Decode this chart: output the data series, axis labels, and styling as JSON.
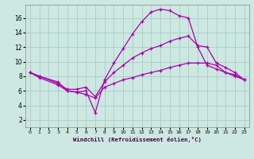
{
  "xlabel": "Windchill (Refroidissement éolien,°C)",
  "background_color": "#cce8e0",
  "line_color": "#aa00aa",
  "grid_color": "#aacccc",
  "xlim": [
    -0.5,
    23.5
  ],
  "ylim": [
    1.0,
    17.8
  ],
  "xticks": [
    0,
    1,
    2,
    3,
    4,
    5,
    6,
    7,
    8,
    9,
    10,
    11,
    12,
    13,
    14,
    15,
    16,
    17,
    18,
    19,
    20,
    21,
    22,
    23
  ],
  "yticks": [
    2,
    4,
    6,
    8,
    10,
    12,
    14,
    16
  ],
  "lines": [
    {
      "x": [
        0,
        1,
        3,
        4,
        5,
        6,
        7,
        8,
        9,
        10,
        11,
        12,
        13,
        14,
        15,
        16,
        17,
        18,
        19,
        20,
        21,
        22,
        23
      ],
      "y": [
        8.5,
        8.0,
        7.2,
        6.0,
        5.8,
        6.0,
        3.0,
        7.5,
        9.8,
        11.8,
        13.8,
        15.5,
        16.8,
        17.2,
        17.0,
        16.3,
        16.0,
        12.0,
        9.5,
        9.0,
        8.5,
        8.0,
        7.5
      ]
    },
    {
      "x": [
        0,
        1,
        3,
        4,
        5,
        6,
        7,
        8,
        9,
        10,
        11,
        12,
        13,
        14,
        15,
        16,
        17,
        18,
        19,
        20,
        21,
        22,
        23
      ],
      "y": [
        8.5,
        8.0,
        7.0,
        6.2,
        6.2,
        6.5,
        5.2,
        7.2,
        8.5,
        9.5,
        10.5,
        11.2,
        11.8,
        12.2,
        12.8,
        13.2,
        13.5,
        12.2,
        12.0,
        9.8,
        9.2,
        8.5,
        7.5
      ]
    },
    {
      "x": [
        0,
        1,
        3,
        4,
        5,
        6,
        7,
        8,
        9,
        10,
        11,
        12,
        13,
        14,
        15,
        16,
        17,
        18,
        19,
        20,
        21,
        22,
        23
      ],
      "y": [
        8.5,
        7.8,
        6.8,
        6.0,
        5.8,
        5.5,
        5.0,
        6.5,
        7.0,
        7.5,
        7.8,
        8.2,
        8.5,
        8.8,
        9.2,
        9.5,
        9.8,
        9.8,
        9.8,
        9.5,
        8.5,
        8.2,
        7.5
      ]
    }
  ]
}
